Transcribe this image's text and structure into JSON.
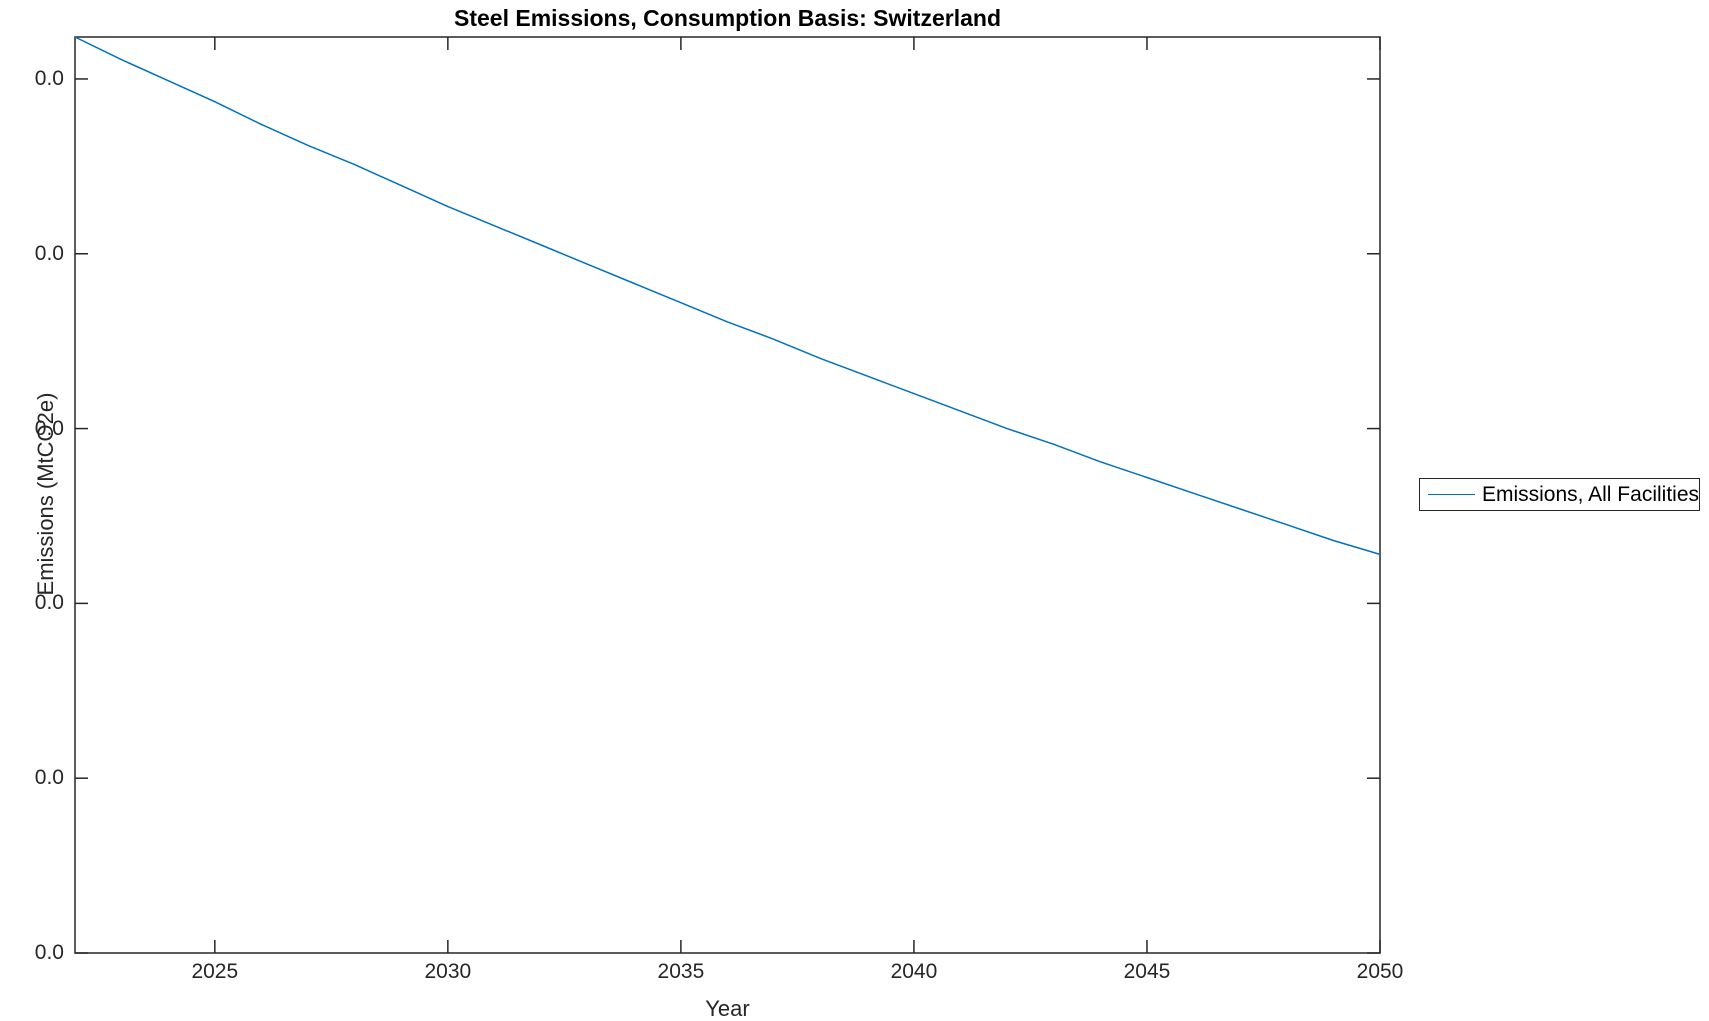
{
  "chart_data": {
    "type": "line",
    "title": "Steel Emissions, Consumption Basis: Switzerland",
    "xlabel": "Year",
    "ylabel": "Emissions (MtCO2e)",
    "xlim": [
      2022,
      2050
    ],
    "ylim": [
      0,
      0.0524
    ],
    "grid": false,
    "box": true,
    "tick_direction": "in",
    "legend_position": "outside-right",
    "x_ticks": [
      2025,
      2030,
      2035,
      2040,
      2045,
      2050
    ],
    "x_tick_labels": [
      "2025",
      "2030",
      "2035",
      "2040",
      "2045",
      "2050"
    ],
    "y_ticks": [
      0,
      0.01,
      0.02,
      0.03,
      0.04,
      0.05
    ],
    "y_tick_labels": [
      "0.0",
      "0.0",
      "0.0",
      "0.0",
      "0.0",
      "0.0"
    ],
    "series": [
      {
        "name": "Emissions, All Facilities",
        "color": "#0072BD",
        "x": [
          2022,
          2023,
          2024,
          2025,
          2026,
          2027,
          2028,
          2029,
          2030,
          2031,
          2032,
          2033,
          2034,
          2035,
          2036,
          2037,
          2038,
          2039,
          2040,
          2041,
          2042,
          2043,
          2044,
          2045,
          2046,
          2047,
          2048,
          2049,
          2050
        ],
        "values": [
          0.0524,
          0.0511,
          0.0499,
          0.0487,
          0.0474,
          0.0462,
          0.0451,
          0.0439,
          0.0427,
          0.0416,
          0.0405,
          0.0394,
          0.0383,
          0.0372,
          0.0361,
          0.0351,
          0.034,
          0.033,
          0.032,
          0.031,
          0.03,
          0.0291,
          0.0281,
          0.0272,
          0.0263,
          0.0254,
          0.0245,
          0.0236,
          0.0228
        ]
      }
    ]
  },
  "legend": {
    "entries": [
      {
        "label": "Emissions, All Facilities",
        "color": "#0072BD"
      }
    ]
  },
  "colors": {
    "axis": "#262626",
    "tick_label": "#262626",
    "title": "#000000",
    "line": "#0072BD",
    "background": "#ffffff"
  }
}
